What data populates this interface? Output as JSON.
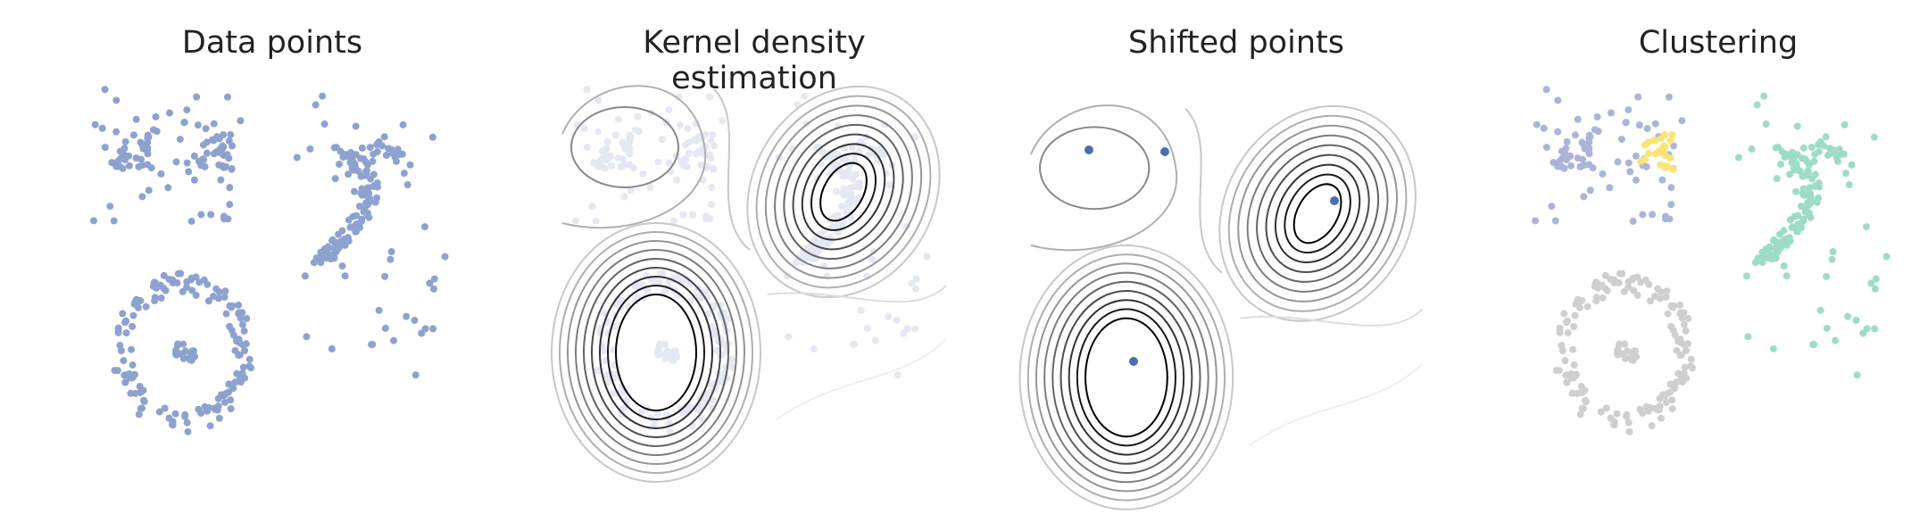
{
  "panels": [
    {
      "title": "Data points"
    },
    {
      "title": "Kernel density estimation"
    },
    {
      "title": "Shifted points"
    },
    {
      "title": "Clustering"
    }
  ],
  "colors": {
    "points": "#8ea2cf",
    "faded_points": "#e3e8f3",
    "modes": "#4a6fb0",
    "contour_dark": "#000000",
    "contour_light": "#cccccc",
    "cluster_blue": "#aab5d8",
    "cluster_yellow": "#fbe475",
    "cluster_teal": "#9fdcc5",
    "cluster_gray": "#cfcfcf",
    "title": "#222222"
  }
}
